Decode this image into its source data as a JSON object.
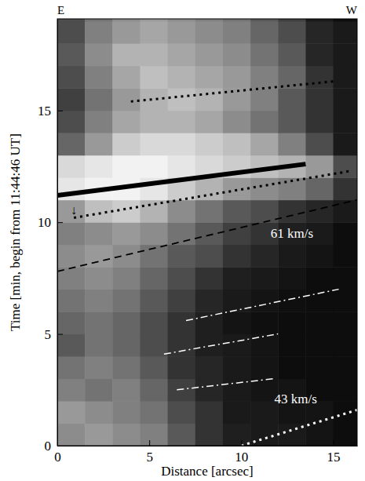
{
  "chart_data": {
    "type": "heatmap",
    "xlabel": "Distance [arcsec]",
    "ylabel": "Time [min, begin from 11:44:46 UT]",
    "corner_labels": [
      "E",
      "W"
    ],
    "xlim": [
      0,
      16.3
    ],
    "ylim": [
      0,
      19.1
    ],
    "xticks": [
      0,
      5,
      10,
      15
    ],
    "yticks": [
      0,
      5,
      10,
      15
    ],
    "heatmap": {
      "x_edges": [
        0,
        1.5,
        3,
        4.5,
        6,
        7.5,
        9,
        10.5,
        12,
        13.5,
        15,
        16.5
      ],
      "y_edges": [
        0,
        1,
        2,
        3,
        4,
        5,
        6,
        7,
        8,
        9,
        10,
        11,
        12,
        13,
        14,
        15,
        16,
        17,
        18,
        19,
        20
      ],
      "crange": [
        0,
        1
      ],
      "cells": [
        [
          0.55,
          0.6,
          0.55,
          0.5,
          0.35,
          0.2,
          0.12,
          0.1,
          0.1,
          0.08,
          0.05
        ],
        [
          0.6,
          0.55,
          0.5,
          0.45,
          0.3,
          0.2,
          0.1,
          0.1,
          0.08,
          0.08,
          0.05
        ],
        [
          0.5,
          0.45,
          0.5,
          0.4,
          0.25,
          0.15,
          0.1,
          0.08,
          0.08,
          0.05,
          0.05
        ],
        [
          0.45,
          0.5,
          0.45,
          0.35,
          0.2,
          0.15,
          0.1,
          0.08,
          0.05,
          0.05,
          0.05
        ],
        [
          0.35,
          0.45,
          0.4,
          0.3,
          0.2,
          0.12,
          0.1,
          0.08,
          0.05,
          0.05,
          0.05
        ],
        [
          0.4,
          0.45,
          0.4,
          0.3,
          0.2,
          0.12,
          0.08,
          0.06,
          0.05,
          0.05,
          0.05
        ],
        [
          0.45,
          0.5,
          0.45,
          0.35,
          0.25,
          0.15,
          0.1,
          0.08,
          0.06,
          0.05,
          0.05
        ],
        [
          0.5,
          0.55,
          0.5,
          0.4,
          0.3,
          0.2,
          0.12,
          0.1,
          0.08,
          0.05,
          0.05
        ],
        [
          0.55,
          0.6,
          0.55,
          0.45,
          0.35,
          0.3,
          0.2,
          0.15,
          0.1,
          0.08,
          0.05
        ],
        [
          0.5,
          0.55,
          0.6,
          0.55,
          0.45,
          0.35,
          0.25,
          0.2,
          0.12,
          0.1,
          0.05
        ],
        [
          0.6,
          0.75,
          0.8,
          0.7,
          0.55,
          0.45,
          0.35,
          0.3,
          0.2,
          0.15,
          0.1
        ],
        [
          0.9,
          0.95,
          0.95,
          0.9,
          0.8,
          0.7,
          0.6,
          0.55,
          0.5,
          0.4,
          0.2
        ],
        [
          0.85,
          0.9,
          0.95,
          0.95,
          0.9,
          0.85,
          0.8,
          0.75,
          0.7,
          0.6,
          0.3
        ],
        [
          0.4,
          0.6,
          0.8,
          0.85,
          0.85,
          0.8,
          0.75,
          0.65,
          0.5,
          0.3,
          0.1
        ],
        [
          0.3,
          0.5,
          0.65,
          0.7,
          0.7,
          0.65,
          0.55,
          0.45,
          0.35,
          0.2,
          0.1
        ],
        [
          0.25,
          0.45,
          0.6,
          0.7,
          0.75,
          0.7,
          0.6,
          0.5,
          0.35,
          0.2,
          0.1
        ],
        [
          0.3,
          0.5,
          0.65,
          0.75,
          0.7,
          0.65,
          0.6,
          0.5,
          0.4,
          0.2,
          0.1
        ],
        [
          0.35,
          0.55,
          0.7,
          0.7,
          0.65,
          0.6,
          0.55,
          0.45,
          0.35,
          0.15,
          0.1
        ],
        [
          0.3,
          0.5,
          0.6,
          0.65,
          0.6,
          0.55,
          0.5,
          0.4,
          0.3,
          0.15,
          0.1
        ],
        [
          0.3,
          0.45,
          0.55,
          0.6,
          0.55,
          0.5,
          0.45,
          0.35,
          0.25,
          0.1,
          0.05
        ]
      ]
    },
    "series": [
      {
        "x": [
          0,
          16.3
        ],
        "y": [
          7.8,
          11.0
        ],
        "color": "#000000",
        "line_style": "dashed"
      },
      {
        "x": [
          10,
          16.3
        ],
        "y": [
          0,
          1.6
        ],
        "color": "#ffffff",
        "line_style": "dotted"
      },
      {
        "x": [
          6.5,
          11.8
        ],
        "y": [
          2.5,
          3.0
        ],
        "color": "#ffffff",
        "line_style": "dash-dot"
      },
      {
        "x": [
          5.8,
          12
        ],
        "y": [
          4.1,
          5.0
        ],
        "color": "#ffffff",
        "line_style": "dash-dot"
      },
      {
        "x": [
          7,
          15.3
        ],
        "y": [
          5.6,
          7.0
        ],
        "color": "#ffffff",
        "line_style": "dash-dot"
      },
      {
        "x": [
          0,
          13.5
        ],
        "y": [
          11.2,
          12.6
        ],
        "color": "#000000",
        "line_style": "solid"
      },
      {
        "x": [
          0.9,
          16
        ],
        "y": [
          10.2,
          12.3
        ],
        "color": "#000000",
        "line_style": "dotted"
      },
      {
        "x": [
          4,
          15
        ],
        "y": [
          15.4,
          16.3
        ],
        "color": "#000000",
        "line_style": "dotted"
      }
    ],
    "annotations": [
      {
        "text": "61 km/s",
        "x": 11.6,
        "y": 9.3,
        "color": "#ffffff"
      },
      {
        "text": "43 km/s",
        "x": 11.8,
        "y": 1.9,
        "color": "#ffffff"
      },
      {
        "text": "↓",
        "x": 0.9,
        "y": 10.35,
        "color": "#000000"
      }
    ]
  }
}
